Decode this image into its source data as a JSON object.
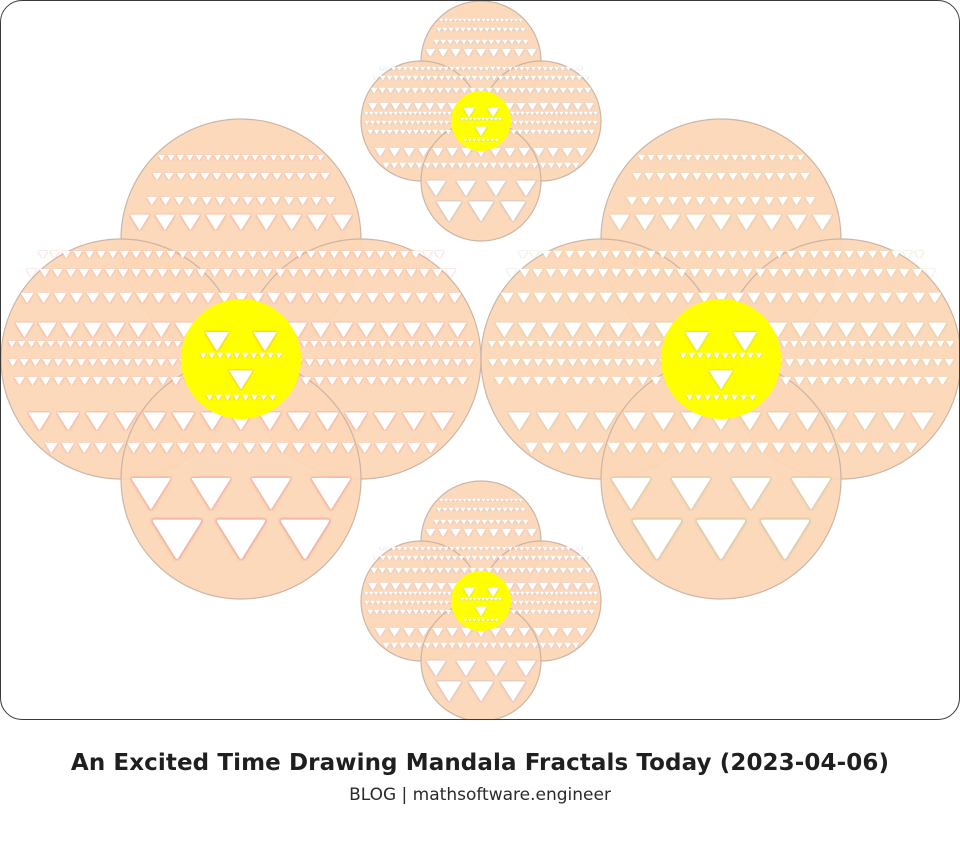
{
  "post": {
    "title": "An Excited Time Drawing Mandala Fractals Today (2023-04-06)",
    "subtitle": "BLOG | mathsoftware.engineer"
  },
  "artwork": {
    "petal_color": "#fcd7b8",
    "center_color": "#ffff00",
    "cutout_color": "#ffffff",
    "mandalas": [
      {
        "name": "large-left",
        "glow": "#e07a7a"
      },
      {
        "name": "small-top",
        "glow": "#8fa8d0"
      },
      {
        "name": "large-right",
        "glow": "#b5b58a"
      },
      {
        "name": "small-bottom",
        "glow": "#b59ac8"
      }
    ]
  }
}
